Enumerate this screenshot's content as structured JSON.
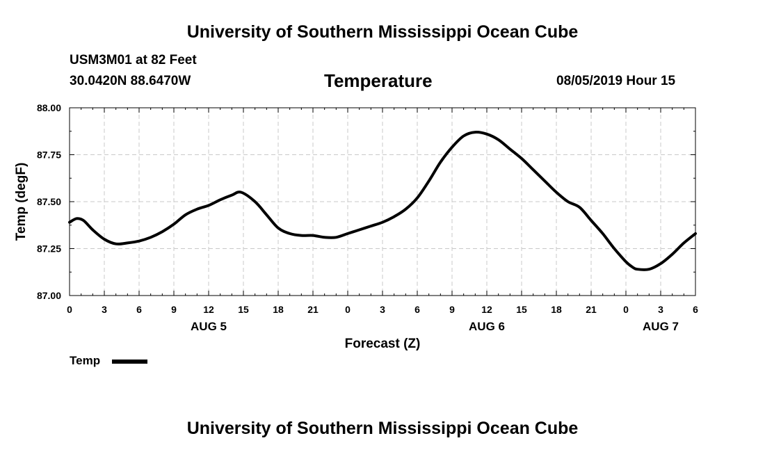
{
  "header": {
    "top_title": "University of Southern Mississippi Ocean Cube",
    "station": "USM3M01 at 82 Feet",
    "coords": "30.0420N 88.6470W",
    "variable": "Temperature",
    "datetime": "08/05/2019 Hour 15"
  },
  "footer": {
    "bottom_title": "University of Southern Mississippi Ocean Cube"
  },
  "legend": {
    "label": "Temp"
  },
  "colors": {
    "line": "#000000",
    "grid": "#c8c8c8",
    "axis": "#000000"
  },
  "chart_data": {
    "type": "line",
    "title": "Temperature",
    "xlabel": "Forecast (Z)",
    "ylabel": "Temp (degF)",
    "xlim": [
      0,
      54
    ],
    "ylim": [
      87.0,
      88.0
    ],
    "x_ticks": [
      0,
      3,
      6,
      9,
      12,
      15,
      18,
      21,
      24,
      27,
      30,
      33,
      36,
      39,
      42,
      45,
      48,
      51,
      54
    ],
    "x_tick_labels": [
      "0",
      "3",
      "6",
      "9",
      "12",
      "15",
      "18",
      "21",
      "0",
      "3",
      "6",
      "9",
      "12",
      "15",
      "18",
      "21",
      "0",
      "3",
      "6"
    ],
    "day_labels": [
      {
        "x": 12,
        "label": "AUG 5"
      },
      {
        "x": 36,
        "label": "AUG 6"
      },
      {
        "x": 51,
        "label": "AUG 7"
      }
    ],
    "y_ticks": [
      87.0,
      87.25,
      87.5,
      87.75,
      88.0
    ],
    "y_tick_labels": [
      "87.00",
      "87.25",
      "87.50",
      "87.75",
      "88.00"
    ],
    "grid": true,
    "legend_position": "bottom-left",
    "series": [
      {
        "name": "Temp",
        "x": [
          0,
          0.6,
          1.2,
          2,
          3,
          4,
          5,
          6,
          7,
          8,
          9,
          10,
          11,
          12,
          13,
          14,
          14.8,
          16,
          17,
          18,
          19,
          20,
          21,
          22,
          23,
          24,
          25,
          26,
          27,
          28,
          29,
          30,
          31,
          32,
          33,
          34,
          35,
          36,
          37,
          38,
          39,
          40,
          41,
          42,
          43,
          44,
          45,
          46,
          47,
          48,
          48.6,
          49,
          50,
          51,
          52,
          53,
          54
        ],
        "values": [
          87.39,
          87.41,
          87.4,
          87.35,
          87.3,
          87.275,
          87.28,
          87.29,
          87.31,
          87.34,
          87.38,
          87.43,
          87.46,
          87.48,
          87.51,
          87.535,
          87.55,
          87.5,
          87.43,
          87.36,
          87.33,
          87.32,
          87.32,
          87.31,
          87.31,
          87.33,
          87.35,
          87.37,
          87.39,
          87.42,
          87.46,
          87.52,
          87.61,
          87.71,
          87.79,
          87.85,
          87.87,
          87.86,
          87.83,
          87.78,
          87.73,
          87.67,
          87.61,
          87.55,
          87.5,
          87.47,
          87.4,
          87.33,
          87.25,
          87.18,
          87.15,
          87.14,
          87.14,
          87.17,
          87.22,
          87.28,
          87.33
        ]
      }
    ]
  }
}
